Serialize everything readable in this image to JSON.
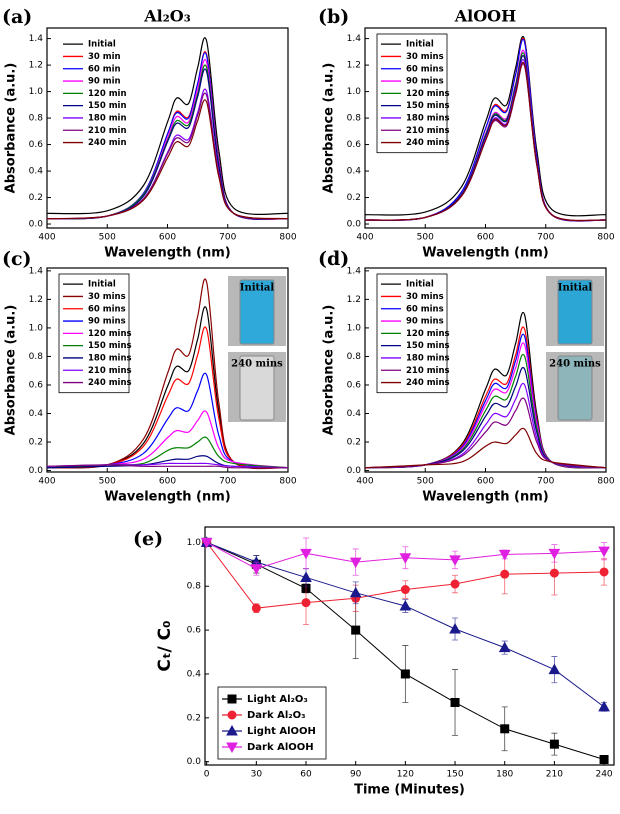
{
  "chart_data": [
    {
      "type": "line",
      "panel_label": "(a)",
      "title": "Al₂O₃",
      "x_label": "Wavelength (nm)",
      "y_label": "Absorbance (a.u.)",
      "x": [
        400,
        500,
        560,
        600,
        615,
        635,
        650,
        665,
        685,
        710,
        800
      ],
      "xlim": [
        400,
        800
      ],
      "ylim": [
        -0.03,
        1.48
      ],
      "xticks": [
        400,
        500,
        600,
        700,
        800
      ],
      "yticks": [
        {
          "value": 0,
          "label": "0.0"
        },
        0.2,
        0.4,
        0.6,
        0.8,
        {
          "value": 1,
          "label": "1.0"
        },
        1.2,
        1.4
      ],
      "series": [
        {
          "name": "Initial",
          "color": "#000000",
          "values": [
            0.08,
            0.1,
            0.29,
            0.77,
            0.95,
            0.91,
            1.18,
            1.38,
            0.56,
            0.12,
            0.08
          ]
        },
        {
          "name": "30 min",
          "color": "#ff0000",
          "values": [
            0.04,
            0.06,
            0.23,
            0.68,
            0.85,
            0.81,
            1.06,
            1.28,
            0.49,
            0.08,
            0.04
          ]
        },
        {
          "name": "60 min",
          "color": "#0000ff",
          "values": [
            0.04,
            0.06,
            0.23,
            0.68,
            0.84,
            0.8,
            1.06,
            1.27,
            0.48,
            0.08,
            0.04
          ]
        },
        {
          "name": "90 min",
          "color": "#ff00ff",
          "values": [
            0.04,
            0.06,
            0.22,
            0.65,
            0.81,
            0.77,
            1.02,
            1.22,
            0.47,
            0.08,
            0.04
          ]
        },
        {
          "name": "120 min",
          "color": "#008000",
          "values": [
            0.04,
            0.06,
            0.22,
            0.63,
            0.78,
            0.75,
            0.98,
            1.18,
            0.45,
            0.08,
            0.04
          ]
        },
        {
          "name": "150 min",
          "color": "#000080",
          "values": [
            0.04,
            0.06,
            0.21,
            0.62,
            0.76,
            0.73,
            0.96,
            1.15,
            0.44,
            0.08,
            0.04
          ]
        },
        {
          "name": "180 min",
          "color": "#8000ff",
          "values": [
            0.04,
            0.06,
            0.19,
            0.54,
            0.67,
            0.64,
            0.84,
            1.0,
            0.39,
            0.08,
            0.04
          ]
        },
        {
          "name": "210 min",
          "color": "#800080",
          "values": [
            0.04,
            0.06,
            0.19,
            0.53,
            0.65,
            0.62,
            0.82,
            0.97,
            0.38,
            0.08,
            0.04
          ]
        },
        {
          "name": "240 min",
          "color": "#800000",
          "values": [
            0.04,
            0.06,
            0.18,
            0.5,
            0.62,
            0.59,
            0.78,
            0.92,
            0.36,
            0.08,
            0.04
          ]
        }
      ]
    },
    {
      "type": "line",
      "panel_label": "(b)",
      "title": "AlOOH",
      "x_label": "Wavelength (nm)",
      "y_label": "Absorbance (a.u.)",
      "x": [
        400,
        500,
        560,
        600,
        615,
        635,
        650,
        665,
        685,
        710,
        800
      ],
      "xlim": [
        400,
        800
      ],
      "ylim": [
        -0.03,
        1.48
      ],
      "xticks": [
        400,
        500,
        600,
        700,
        800
      ],
      "yticks": [
        {
          "value": 0,
          "label": "0.0"
        },
        0.2,
        0.4,
        0.6,
        0.8,
        {
          "value": 1,
          "label": "1.0"
        },
        1.2,
        1.4
      ],
      "series": [
        {
          "name": "Initial",
          "color": "#000000",
          "values": [
            0.07,
            0.09,
            0.28,
            0.77,
            0.95,
            0.9,
            1.18,
            1.39,
            0.56,
            0.11,
            0.07
          ]
        },
        {
          "name": "30 mins",
          "color": "#ff0000",
          "values": [
            0.03,
            0.05,
            0.24,
            0.72,
            0.9,
            0.86,
            1.13,
            1.38,
            0.51,
            0.07,
            0.03
          ]
        },
        {
          "name": "60 mins",
          "color": "#0000ff",
          "values": [
            0.03,
            0.05,
            0.24,
            0.72,
            0.89,
            0.85,
            1.13,
            1.37,
            0.51,
            0.07,
            0.03
          ]
        },
        {
          "name": "90 mins",
          "color": "#ff00ff",
          "values": [
            0.03,
            0.05,
            0.22,
            0.68,
            0.84,
            0.8,
            1.06,
            1.29,
            0.48,
            0.07,
            0.03
          ]
        },
        {
          "name": "120 mins",
          "color": "#008000",
          "values": [
            0.03,
            0.05,
            0.22,
            0.67,
            0.83,
            0.79,
            1.05,
            1.27,
            0.47,
            0.07,
            0.03
          ]
        },
        {
          "name": "150 mins",
          "color": "#000080",
          "values": [
            0.03,
            0.05,
            0.22,
            0.66,
            0.82,
            0.78,
            1.03,
            1.25,
            0.47,
            0.07,
            0.03
          ]
        },
        {
          "name": "180 mins",
          "color": "#8000ff",
          "values": [
            0.03,
            0.05,
            0.21,
            0.64,
            0.8,
            0.76,
            1.01,
            1.22,
            0.46,
            0.07,
            0.03
          ]
        },
        {
          "name": "210 mins",
          "color": "#800080",
          "values": [
            0.03,
            0.05,
            0.21,
            0.63,
            0.78,
            0.74,
            0.98,
            1.19,
            0.45,
            0.07,
            0.03
          ]
        },
        {
          "name": "240 mins",
          "color": "#800000",
          "values": [
            0.03,
            0.05,
            0.21,
            0.63,
            0.79,
            0.75,
            0.99,
            1.2,
            0.45,
            0.07,
            0.03
          ]
        }
      ]
    },
    {
      "type": "line",
      "panel_label": "(c)",
      "x_label": "Wavelength (nm)",
      "y_label": "Absorbance (a.u.)",
      "annotations": [
        "Initial",
        "240 mins"
      ],
      "x": [
        400,
        500,
        560,
        600,
        615,
        635,
        650,
        665,
        685,
        710,
        800
      ],
      "xlim": [
        400,
        800
      ],
      "ylim": [
        -0.01,
        1.42
      ],
      "xticks": [
        400,
        500,
        600,
        700,
        800
      ],
      "yticks": [
        {
          "value": 0,
          "label": "0.0"
        },
        0.2,
        0.4,
        0.6,
        0.8,
        {
          "value": 1,
          "label": "1.0"
        },
        1.2,
        1.4
      ],
      "series": [
        {
          "name": "Initial",
          "color": "#000000",
          "values": [
            0.02,
            0.04,
            0.19,
            0.59,
            0.73,
            0.7,
            0.92,
            1.13,
            0.42,
            0.06,
            0.02
          ]
        },
        {
          "name": "30 mins",
          "color": "#8b0000",
          "values": [
            0.02,
            0.04,
            0.22,
            0.68,
            0.85,
            0.81,
            1.08,
            1.32,
            0.48,
            0.06,
            0.02
          ]
        },
        {
          "name": "60 mins",
          "color": "#ff0000",
          "values": [
            0.02,
            0.04,
            0.17,
            0.52,
            0.64,
            0.61,
            0.81,
            0.99,
            0.37,
            0.06,
            0.02
          ]
        },
        {
          "name": "90 mins",
          "color": "#0000ff",
          "values": [
            0.02,
            0.04,
            0.12,
            0.36,
            0.44,
            0.42,
            0.56,
            0.67,
            0.25,
            0.06,
            0.02
          ]
        },
        {
          "name": "120 mins",
          "color": "#ff00ff",
          "values": [
            0.02,
            0.04,
            0.08,
            0.23,
            0.28,
            0.27,
            0.35,
            0.41,
            0.16,
            0.06,
            0.02
          ]
        },
        {
          "name": "150 mins",
          "color": "#008000",
          "values": [
            0.02,
            0.04,
            0.05,
            0.14,
            0.16,
            0.16,
            0.2,
            0.23,
            0.1,
            0.05,
            0.02
          ]
        },
        {
          "name": "180 mins",
          "color": "#000080",
          "values": [
            0.02,
            0.03,
            0.04,
            0.07,
            0.08,
            0.08,
            0.1,
            0.1,
            0.05,
            0.03,
            0.02
          ]
        },
        {
          "name": "210 mins",
          "color": "#8000ff",
          "values": [
            0.03,
            0.04,
            0.04,
            0.05,
            0.05,
            0.05,
            0.05,
            0.05,
            0.04,
            0.03,
            0.02
          ]
        },
        {
          "name": "240 mins",
          "color": "#800080",
          "values": [
            0.03,
            0.04,
            0.03,
            0.03,
            0.03,
            0.03,
            0.03,
            0.03,
            0.03,
            0.02,
            0.02
          ]
        }
      ]
    },
    {
      "type": "line",
      "panel_label": "(d)",
      "x_label": "Wavelength (nm)",
      "y_label": "Absorbance (a.u.)",
      "annotations": [
        "Initial",
        "240 mins"
      ],
      "x": [
        400,
        500,
        560,
        600,
        615,
        635,
        650,
        665,
        685,
        710,
        800
      ],
      "xlim": [
        400,
        800
      ],
      "ylim": [
        -0.01,
        1.42
      ],
      "xticks": [
        400,
        500,
        600,
        700,
        800
      ],
      "yticks": [
        {
          "value": 0,
          "label": "0.0"
        },
        0.2,
        0.4,
        0.6,
        0.8,
        {
          "value": 1,
          "label": "1.0"
        },
        1.2,
        1.4
      ],
      "series": [
        {
          "name": "Initial",
          "color": "#000000",
          "values": [
            0.02,
            0.04,
            0.18,
            0.57,
            0.71,
            0.67,
            0.89,
            1.09,
            0.4,
            0.06,
            0.02
          ]
        },
        {
          "name": "30 mins",
          "color": "#ff0000",
          "values": [
            0.02,
            0.04,
            0.17,
            0.52,
            0.64,
            0.61,
            0.81,
            0.99,
            0.37,
            0.06,
            0.02
          ]
        },
        {
          "name": "60 mins",
          "color": "#0000ff",
          "values": [
            0.02,
            0.04,
            0.16,
            0.49,
            0.61,
            0.58,
            0.77,
            0.94,
            0.35,
            0.06,
            0.02
          ]
        },
        {
          "name": "90 mins",
          "color": "#ff00ff",
          "values": [
            0.02,
            0.04,
            0.15,
            0.46,
            0.57,
            0.55,
            0.72,
            0.88,
            0.33,
            0.06,
            0.02
          ]
        },
        {
          "name": "120 mins",
          "color": "#008000",
          "values": [
            0.02,
            0.04,
            0.14,
            0.42,
            0.52,
            0.5,
            0.66,
            0.8,
            0.3,
            0.06,
            0.02
          ]
        },
        {
          "name": "150 mins",
          "color": "#000080",
          "values": [
            0.02,
            0.04,
            0.13,
            0.38,
            0.47,
            0.45,
            0.59,
            0.71,
            0.27,
            0.06,
            0.02
          ]
        },
        {
          "name": "180 mins",
          "color": "#8000ff",
          "values": [
            0.02,
            0.04,
            0.11,
            0.32,
            0.4,
            0.38,
            0.5,
            0.6,
            0.23,
            0.06,
            0.02
          ]
        },
        {
          "name": "210 mins",
          "color": "#800080",
          "values": [
            0.02,
            0.04,
            0.1,
            0.27,
            0.34,
            0.32,
            0.42,
            0.5,
            0.2,
            0.06,
            0.02
          ]
        },
        {
          "name": "240 mins",
          "color": "#800000",
          "values": [
            0.02,
            0.04,
            0.06,
            0.17,
            0.2,
            0.19,
            0.25,
            0.29,
            0.12,
            0.06,
            0.02
          ]
        }
      ]
    },
    {
      "type": "line",
      "panel_label": "(e)",
      "x_label": "Time (Minutes)",
      "y_label": "Cₜ/ C₀",
      "x": [
        0,
        30,
        60,
        90,
        120,
        150,
        180,
        210,
        240
      ],
      "xlim": [
        -1,
        246
      ],
      "ylim": [
        -0.015,
        1.07
      ],
      "xticks": [
        0,
        30,
        60,
        90,
        120,
        150,
        180,
        210,
        240
      ],
      "yticks": [
        {
          "value": 0,
          "label": "0.0"
        },
        0.2,
        0.4,
        0.6,
        0.8,
        {
          "value": 1,
          "label": "1.0"
        }
      ],
      "series": [
        {
          "name": "Light Al₂O₃",
          "color": "#000000",
          "marker": "square",
          "values": [
            1,
            0.9,
            0.79,
            0.6,
            0.4,
            0.27,
            0.15,
            0.08,
            0.01
          ],
          "errors": [
            0,
            0.04,
            0.02,
            0.13,
            0.13,
            0.15,
            0.1,
            0.05,
            0.01
          ]
        },
        {
          "name": "Dark Al₂O₃",
          "color": "#ee2233",
          "marker": "circle",
          "values": [
            1,
            0.7,
            0.725,
            0.745,
            0.785,
            0.81,
            0.855,
            0.86,
            0.865
          ],
          "errors": [
            0,
            0.02,
            0.1,
            0.06,
            0.04,
            0.04,
            0.09,
            0.1,
            0.06
          ]
        },
        {
          "name": "Light AlOOH",
          "color": "#1a1a8c",
          "marker": "triangle",
          "values": [
            1,
            0.91,
            0.84,
            0.77,
            0.71,
            0.605,
            0.52,
            0.42,
            0.25
          ],
          "errors": [
            0,
            0.03,
            0.04,
            0.05,
            0.03,
            0.05,
            0.03,
            0.06,
            0.02
          ]
        },
        {
          "name": "Dark AlOOH",
          "color": "#e020e0",
          "marker": "triangle-down",
          "values": [
            1,
            0.88,
            0.95,
            0.91,
            0.93,
            0.92,
            0.945,
            0.95,
            0.96
          ],
          "errors": [
            0,
            0.03,
            0.07,
            0.06,
            0.05,
            0.04,
            0.02,
            0.04,
            0.04
          ]
        }
      ]
    }
  ]
}
